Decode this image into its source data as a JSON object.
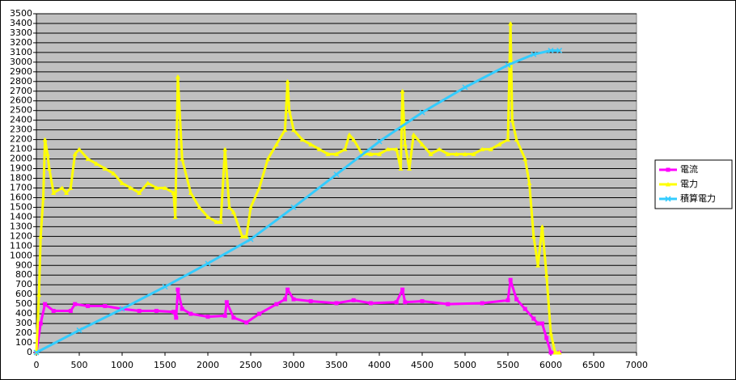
{
  "chart_data": {
    "type": "line",
    "xlim": [
      0,
      7000
    ],
    "ylim": [
      0,
      3500
    ],
    "xticks": [
      0,
      500,
      1000,
      1500,
      2000,
      2500,
      3000,
      3500,
      4000,
      4500,
      5000,
      5500,
      6000,
      6500,
      7000
    ],
    "yticks": [
      0,
      100,
      200,
      300,
      400,
      500,
      600,
      700,
      800,
      900,
      1000,
      1100,
      1200,
      1300,
      1400,
      1500,
      1600,
      1700,
      1800,
      1900,
      2000,
      2100,
      2200,
      2300,
      2400,
      2500,
      2600,
      2700,
      2800,
      2900,
      3000,
      3100,
      3200,
      3300,
      3400,
      3500
    ],
    "grid": true,
    "legend": "right",
    "series": [
      {
        "name": "電流",
        "color": "#ff00ff",
        "marker": "square",
        "x": [
          0,
          50,
          100,
          200,
          400,
          450,
          600,
          800,
          1000,
          1200,
          1400,
          1600,
          1630,
          1650,
          1700,
          1800,
          2000,
          2200,
          2220,
          2300,
          2450,
          2600,
          2800,
          2900,
          2930,
          3000,
          3200,
          3500,
          3700,
          3900,
          4200,
          4270,
          4300,
          4500,
          4800,
          5200,
          5500,
          5530,
          5600,
          5700,
          5800,
          5850,
          5900,
          5950,
          6000,
          6100
        ],
        "values": [
          0,
          300,
          500,
          430,
          430,
          500,
          480,
          480,
          450,
          430,
          430,
          420,
          360,
          650,
          450,
          400,
          370,
          380,
          520,
          360,
          310,
          400,
          500,
          550,
          650,
          550,
          530,
          510,
          540,
          510,
          520,
          650,
          520,
          530,
          500,
          510,
          540,
          750,
          550,
          450,
          350,
          300,
          300,
          150,
          0,
          0
        ]
      },
      {
        "name": "電力",
        "color": "#ffff00",
        "marker": "triangle",
        "x": [
          0,
          30,
          50,
          80,
          100,
          130,
          150,
          200,
          300,
          350,
          400,
          450,
          500,
          600,
          700,
          800,
          900,
          1000,
          1100,
          1200,
          1300,
          1400,
          1500,
          1600,
          1620,
          1650,
          1700,
          1800,
          1900,
          2000,
          2100,
          2150,
          2200,
          2250,
          2300,
          2400,
          2450,
          2500,
          2600,
          2700,
          2800,
          2900,
          2930,
          2950,
          3000,
          3100,
          3200,
          3300,
          3400,
          3500,
          3600,
          3650,
          3700,
          3800,
          3900,
          4000,
          4100,
          4200,
          4250,
          4270,
          4300,
          4350,
          4400,
          4500,
          4600,
          4700,
          4800,
          4900,
          5000,
          5100,
          5200,
          5300,
          5400,
          5500,
          5530,
          5550,
          5600,
          5700,
          5750,
          5800,
          5850,
          5900,
          5950,
          6000,
          6050,
          6100
        ],
        "values": [
          0,
          600,
          1200,
          1600,
          2200,
          2050,
          1900,
          1650,
          1700,
          1650,
          1700,
          2050,
          2100,
          2000,
          1950,
          1900,
          1850,
          1750,
          1700,
          1650,
          1750,
          1700,
          1700,
          1650,
          1400,
          2850,
          2000,
          1650,
          1500,
          1400,
          1350,
          1350,
          2100,
          1500,
          1450,
          1200,
          1200,
          1500,
          1700,
          2000,
          2150,
          2300,
          2800,
          2500,
          2300,
          2200,
          2150,
          2100,
          2050,
          2050,
          2100,
          2250,
          2200,
          2050,
          2050,
          2050,
          2100,
          2100,
          1900,
          2700,
          2150,
          1900,
          2250,
          2150,
          2050,
          2100,
          2050,
          2050,
          2050,
          2050,
          2100,
          2100,
          2150,
          2200,
          3400,
          2400,
          2200,
          2000,
          1750,
          1200,
          900,
          1300,
          800,
          200,
          0,
          0
        ]
      },
      {
        "name": "積算電力",
        "color": "#33ccff",
        "marker": "x",
        "x": [
          0,
          500,
          1000,
          1500,
          2000,
          2500,
          3000,
          3500,
          4000,
          4500,
          5000,
          5500,
          5800,
          6000,
          6100
        ],
        "values": [
          0,
          230,
          450,
          680,
          920,
          1170,
          1500,
          1840,
          2180,
          2480,
          2740,
          2970,
          3080,
          3120,
          3120
        ]
      }
    ]
  }
}
